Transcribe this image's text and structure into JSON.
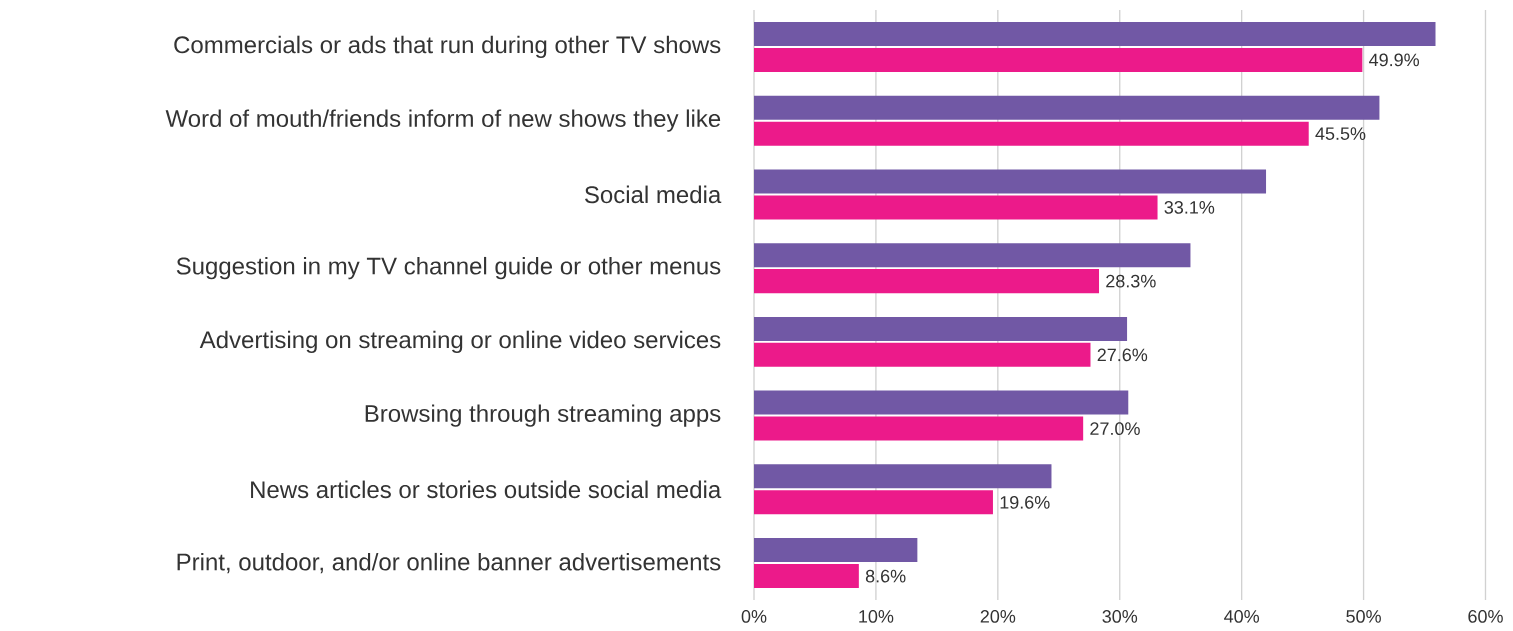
{
  "chart_data": {
    "type": "bar",
    "orientation": "horizontal",
    "categories": [
      "Commercials or ads that run during other TV shows",
      "Word of mouth/friends inform of new shows they like",
      "Social media",
      "Suggestion in my TV channel guide or other menus",
      "Advertising on streaming or online video services",
      "Browsing through streaming apps",
      "News articles or stories outside social media",
      "Print, outdoor, and/or online banner advertisements"
    ],
    "series": [
      {
        "color": "#7158a5",
        "values": [
          55.9,
          51.3,
          42.0,
          35.8,
          30.6,
          30.7,
          24.4,
          13.4
        ]
      },
      {
        "color": "#ec1a8a",
        "values": [
          49.9,
          45.5,
          33.1,
          28.3,
          27.6,
          27.0,
          19.6,
          8.6
        ],
        "value_labels": [
          "49.9%",
          "45.5%",
          "33.1%",
          "28.3%",
          "27.6%",
          "27.0%",
          "19.6%",
          "8.6%"
        ]
      }
    ],
    "xlim": [
      0,
      60
    ],
    "xticks": [
      {
        "value": 0,
        "label": "0%"
      },
      {
        "value": 10,
        "label": "10%"
      },
      {
        "value": 20,
        "label": "20%"
      },
      {
        "value": 30,
        "label": "30%"
      },
      {
        "value": 40,
        "label": "40%"
      },
      {
        "value": 50,
        "label": "50%"
      },
      {
        "value": 60,
        "label": "60%"
      }
    ],
    "grid": "x"
  }
}
